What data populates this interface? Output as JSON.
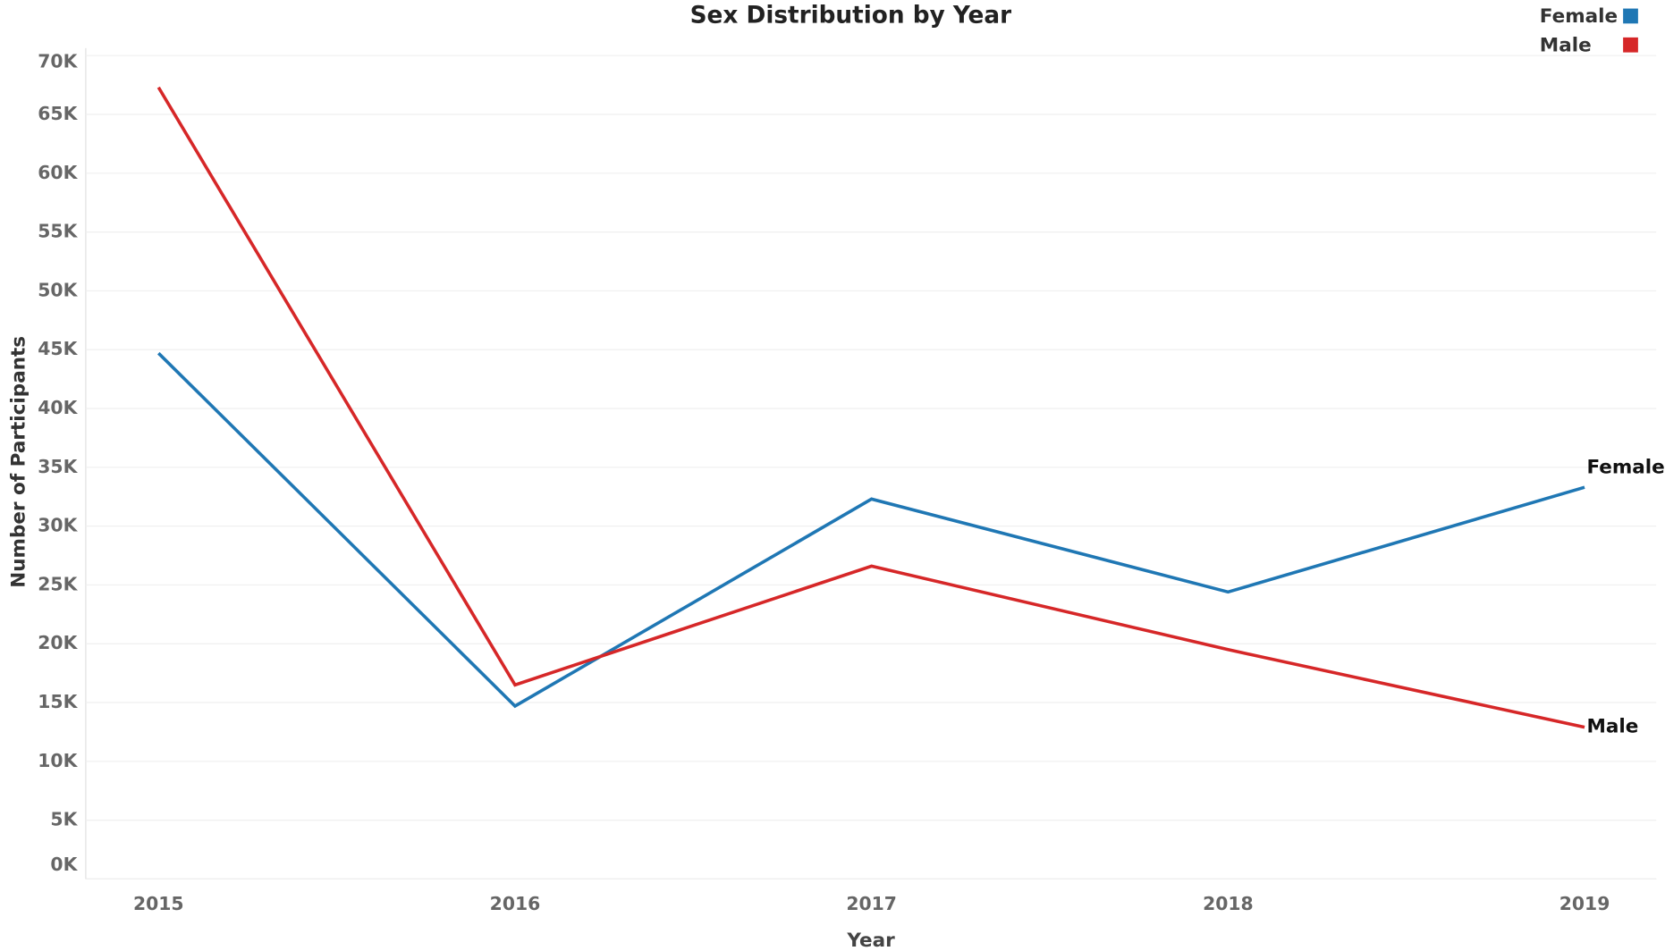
{
  "chart_data": {
    "type": "line",
    "title": "Sex Distribution by Year",
    "x_label": "Year",
    "y_label": "Number of Participants",
    "categories": [
      "2015",
      "2016",
      "2017",
      "2018",
      "2019"
    ],
    "series": [
      {
        "name": "Female",
        "color": "#1f77b4",
        "values": [
          44700,
          14700,
          32300,
          24400,
          33300
        ]
      },
      {
        "name": "Male",
        "color": "#d62728",
        "values": [
          67300,
          16500,
          26600,
          19500,
          12900
        ]
      }
    ],
    "ylim": [
      0,
      70000
    ],
    "yticks": [
      {
        "value": 0,
        "label": "0K"
      },
      {
        "value": 5000,
        "label": "5K"
      },
      {
        "value": 10000,
        "label": "10K"
      },
      {
        "value": 15000,
        "label": "15K"
      },
      {
        "value": 20000,
        "label": "20K"
      },
      {
        "value": 25000,
        "label": "25K"
      },
      {
        "value": 30000,
        "label": "30K"
      },
      {
        "value": 35000,
        "label": "35K"
      },
      {
        "value": 40000,
        "label": "40K"
      },
      {
        "value": 45000,
        "label": "45K"
      },
      {
        "value": 50000,
        "label": "50K"
      },
      {
        "value": 55000,
        "label": "55K"
      },
      {
        "value": 60000,
        "label": "60K"
      },
      {
        "value": 65000,
        "label": "65K"
      },
      {
        "value": 70000,
        "label": "70K"
      }
    ],
    "grid": true,
    "legend": "top-right"
  }
}
